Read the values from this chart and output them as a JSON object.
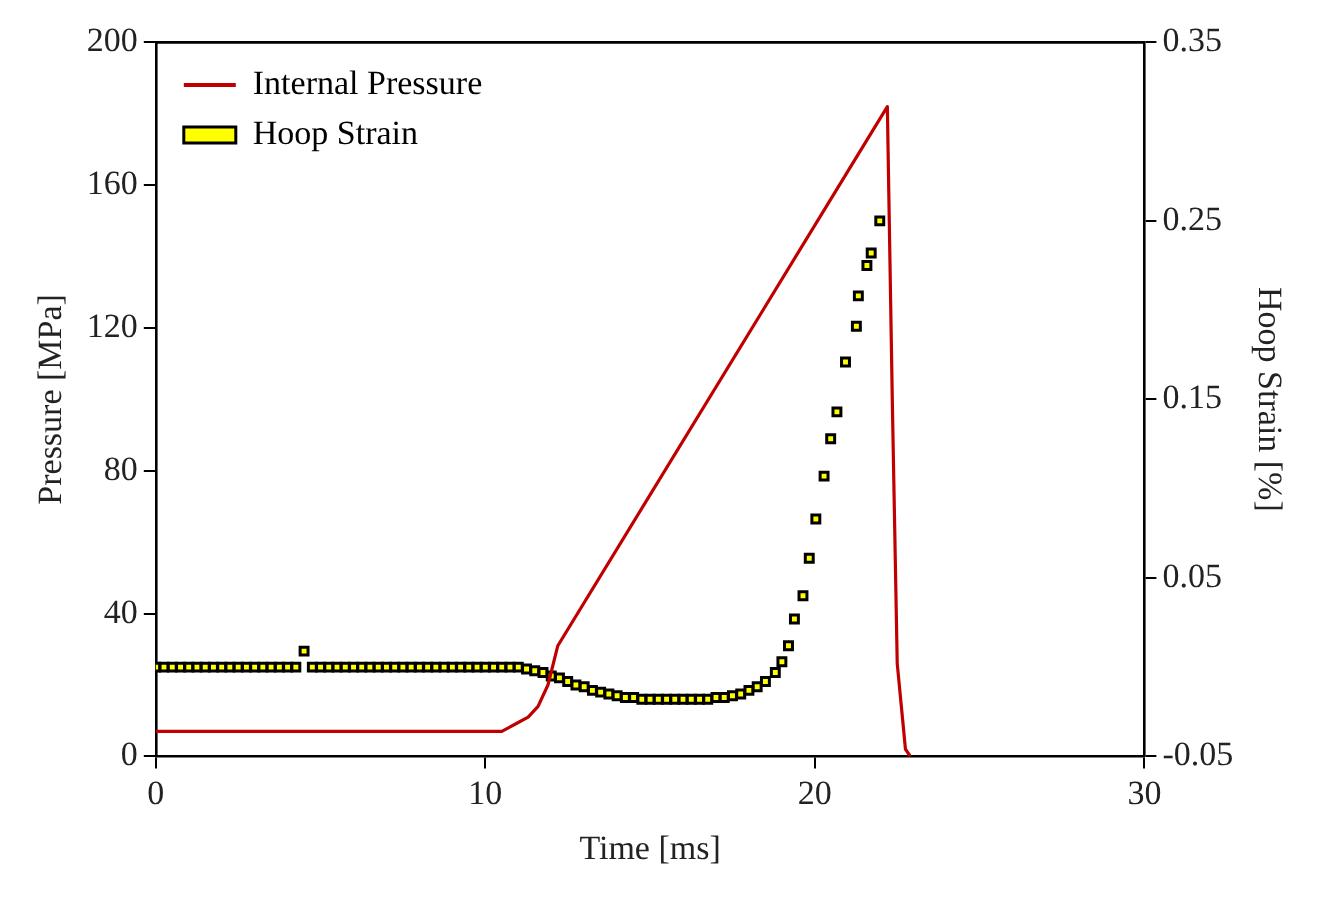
{
  "chart_data": {
    "type": "line",
    "xlabel": "Time [ms]",
    "ylabel": "Pressure [MPa]",
    "y2label": "Hoop Strain [%]",
    "xlim": [
      0,
      30
    ],
    "xticks": [
      0,
      10,
      20,
      30
    ],
    "ylim": [
      0,
      200
    ],
    "yticks": [
      0,
      40,
      80,
      120,
      160,
      200
    ],
    "y2lim": [
      -0.05,
      0.35
    ],
    "y2ticks": [
      -0.05,
      0.05,
      0.15,
      0.25,
      0.35
    ],
    "grid": false,
    "legend": "top left",
    "series": [
      {
        "name": "Internal Pressure",
        "color": "#c00000",
        "marker": "none",
        "x": [
          0,
          2,
          4,
          6,
          8,
          10,
          10.5,
          10.9,
          11.3,
          11.6,
          11.9,
          12.2,
          22.2,
          22.35,
          22.5,
          22.75,
          22.9
        ],
        "values": [
          7,
          7,
          7,
          7,
          7,
          7,
          7,
          9,
          11,
          14,
          20,
          31,
          182,
          100,
          26,
          2,
          0
        ]
      },
      {
        "name": "Hoop Strain",
        "type": "scatter",
        "color": "#ffff00",
        "marker": "square",
        "axis": "y2",
        "x": [
          0,
          0.25,
          0.5,
          0.75,
          1,
          1.25,
          1.5,
          1.75,
          2,
          2.25,
          2.5,
          2.75,
          3,
          3.25,
          3.5,
          3.75,
          4,
          4.25,
          4.5,
          4.75,
          5,
          5.25,
          5.5,
          5.75,
          6,
          6.25,
          6.5,
          6.75,
          7,
          7.25,
          7.5,
          7.75,
          8,
          8.25,
          8.5,
          8.75,
          9,
          9.25,
          9.5,
          9.75,
          10,
          10.25,
          10.5,
          10.75,
          11,
          11.25,
          11.5,
          11.75,
          12,
          12.25,
          12.5,
          12.75,
          13,
          13.25,
          13.5,
          13.75,
          14,
          14.25,
          14.5,
          14.75,
          15,
          15.25,
          15.5,
          15.75,
          16,
          16.25,
          16.5,
          16.75,
          17,
          17.25,
          17.5,
          17.75,
          18,
          18.25,
          18.5,
          18.8,
          19,
          19.2,
          19.38,
          19.64,
          19.83,
          20.03,
          20.28,
          20.48,
          20.67,
          20.93,
          21.26,
          21.32,
          21.58,
          21.71,
          21.97
        ],
        "values": [
          0,
          0,
          0,
          0,
          0,
          0,
          0,
          0,
          0,
          0,
          0,
          0,
          0,
          0,
          0,
          0,
          0,
          0,
          0.009,
          0,
          0,
          0,
          0,
          0,
          0,
          0,
          0,
          0,
          0,
          0,
          0,
          0,
          0,
          0,
          0,
          0,
          0,
          0,
          0,
          0,
          0,
          0,
          0,
          0,
          0,
          -0.001,
          -0.002,
          -0.003,
          -0.005,
          -0.006,
          -0.008,
          -0.01,
          -0.011,
          -0.013,
          -0.014,
          -0.015,
          -0.016,
          -0.017,
          -0.017,
          -0.018,
          -0.018,
          -0.018,
          -0.018,
          -0.018,
          -0.018,
          -0.018,
          -0.018,
          -0.018,
          -0.017,
          -0.017,
          -0.016,
          -0.015,
          -0.013,
          -0.011,
          -0.008,
          -0.003,
          0.003,
          0.012,
          0.027,
          0.04,
          0.061,
          0.083,
          0.107,
          0.128,
          0.143,
          0.171,
          0.191,
          0.208,
          0.225,
          0.232,
          0.25
        ]
      }
    ]
  }
}
